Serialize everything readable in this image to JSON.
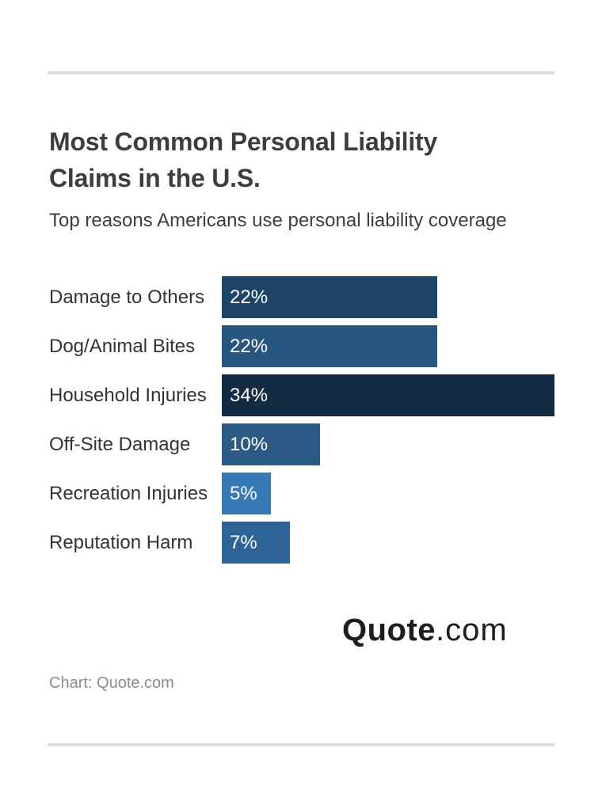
{
  "header": {
    "title": "Most Common Personal Liability Claims in the U.S.",
    "subtitle": "Top reasons Americans use personal liability coverage"
  },
  "chart_data": {
    "type": "bar",
    "orientation": "horizontal",
    "title": "Most Common Personal Liability Claims in the U.S.",
    "subtitle": "Top reasons Americans use personal liability coverage",
    "categories": [
      "Damage to Others",
      "Dog/Animal Bites",
      "Household Injuries",
      "Off-Site Damage",
      "Recreation Injuries",
      "Reputation Harm"
    ],
    "values": [
      22,
      22,
      34,
      10,
      5,
      7
    ],
    "value_labels": [
      "22%",
      "22%",
      "34%",
      "10%",
      "5%",
      "7%"
    ],
    "bar_colors": [
      "#1e4567",
      "#27567f",
      "#132c44",
      "#2a5a85",
      "#3779b4",
      "#2d6396"
    ],
    "xlim": [
      0,
      34
    ],
    "grid": false,
    "legend": false,
    "value_label_position": "inside-left",
    "value_label_color": "#ffffff"
  },
  "footer": {
    "logo_primary": "Quote",
    "logo_secondary": ".com",
    "attribution": "Chart: Quote.com"
  },
  "colors": {
    "title_text": "#3d3d3d",
    "label_text": "#333333",
    "divider": "#dcdcdc",
    "attribution_text": "#8b8b8b",
    "logo_text": "#1e1c1d",
    "background": "#ffffff"
  }
}
